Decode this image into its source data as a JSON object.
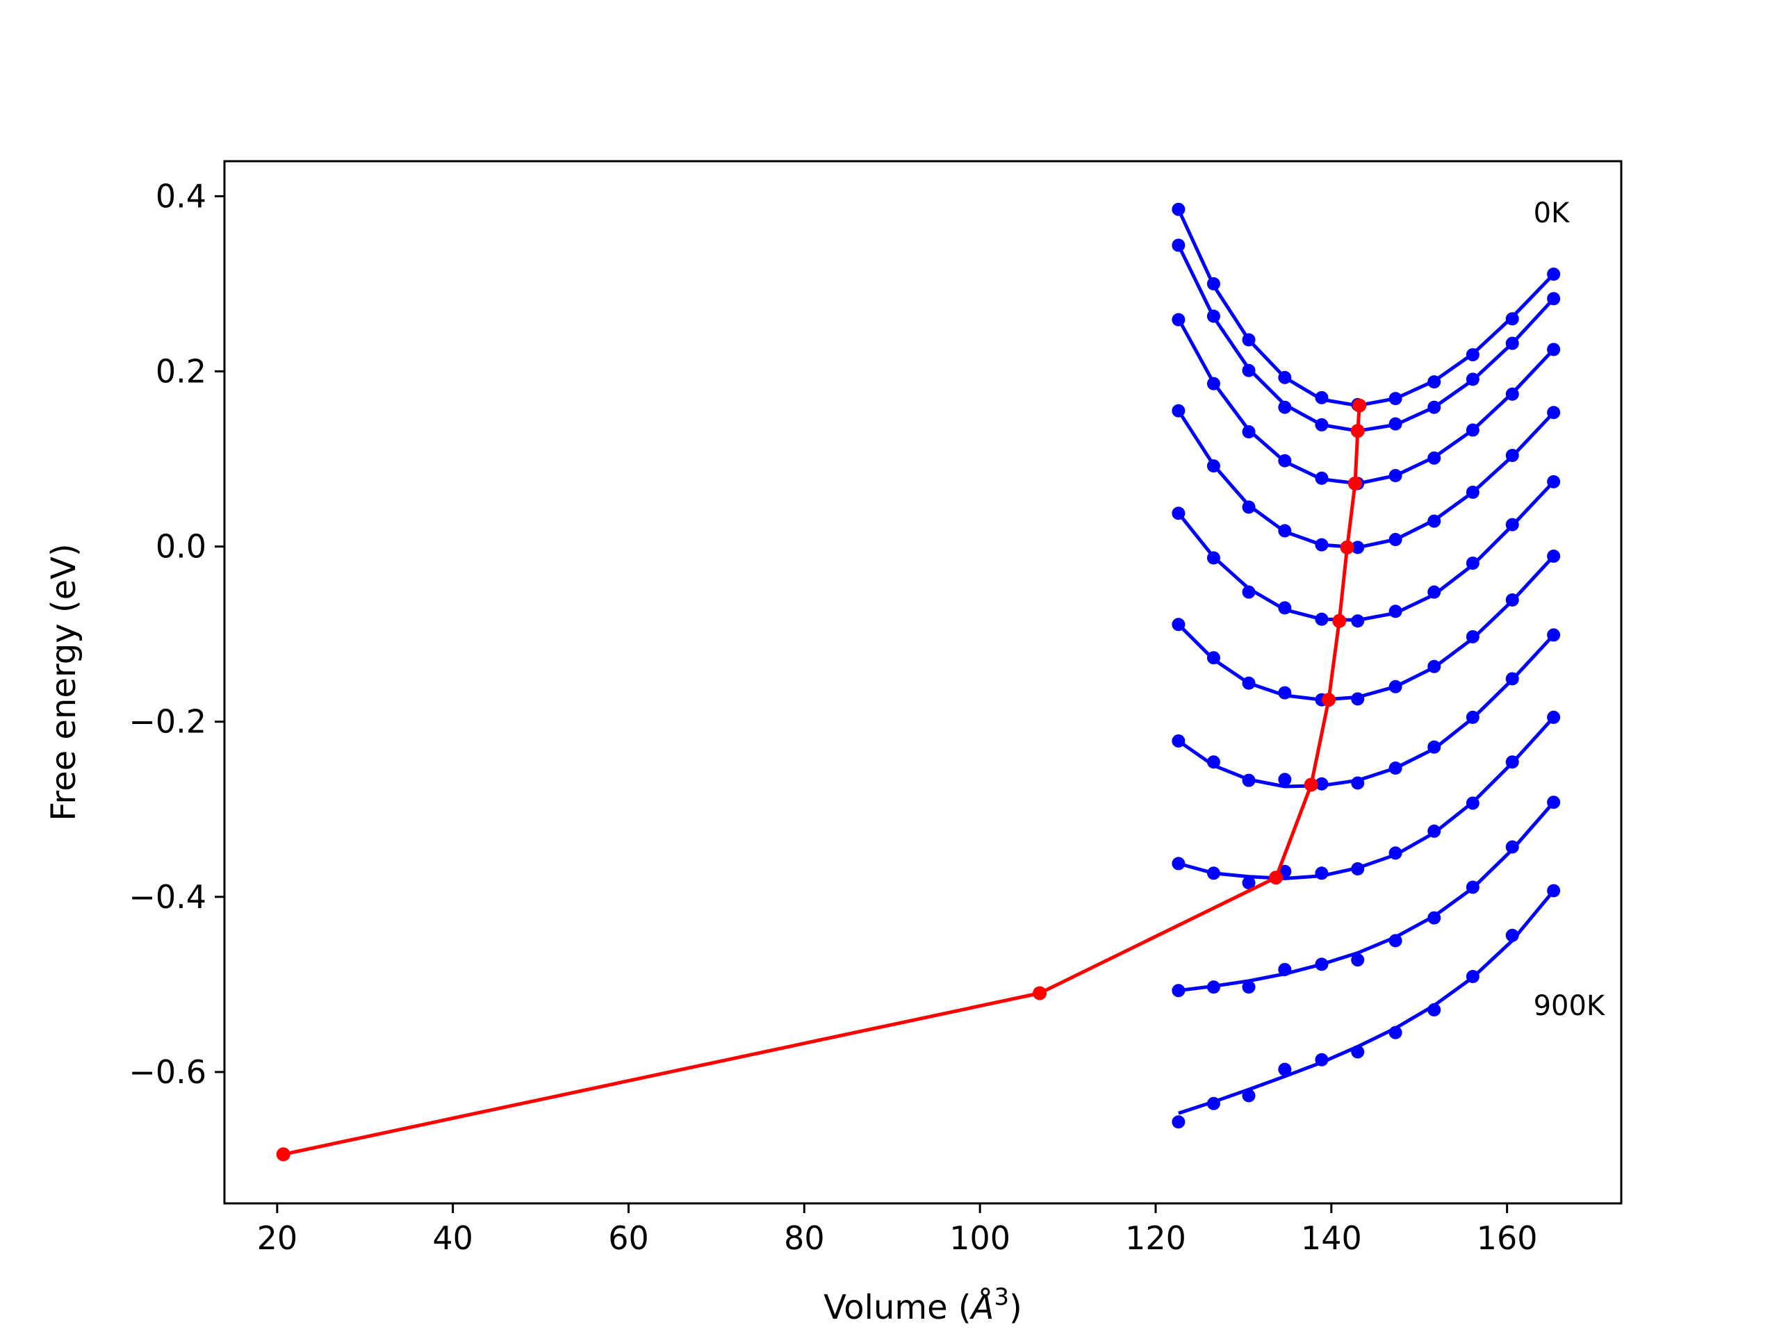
{
  "chart_data": {
    "type": "scatter",
    "title": "",
    "xlabel": "Volume (Å³)",
    "xlabel_parts": {
      "text": "Volume (",
      "symbol": "Å",
      "exponent": "3",
      "close": ")"
    },
    "ylabel": "Free energy (eV)",
    "xlim": [
      14,
      173
    ],
    "ylim": [
      -0.75,
      0.44
    ],
    "xticks": [
      20,
      40,
      60,
      80,
      100,
      120,
      140,
      160
    ],
    "xtick_labels": [
      "20",
      "40",
      "60",
      "80",
      "100",
      "120",
      "140",
      "160"
    ],
    "yticks": [
      -0.6,
      -0.4,
      -0.2,
      0.0,
      0.2,
      0.4
    ],
    "ytick_labels": [
      "−0.6",
      "−0.4",
      "−0.2",
      "0.0",
      "0.2",
      "0.4"
    ],
    "grid": false,
    "legend": "none",
    "annotations": [
      {
        "text": "0K",
        "x": 163,
        "y": 0.37
      },
      {
        "text": "900K",
        "x": 163,
        "y": -0.535
      }
    ],
    "colors": {
      "isotherm": "#0000ff",
      "minimum_path": "#ff0000",
      "axes": "#000000"
    },
    "volumes": [
      122.6,
      126.6,
      130.6,
      134.7,
      138.9,
      143.0,
      147.3,
      151.7,
      156.1,
      160.6,
      165.3
    ],
    "isotherms": [
      {
        "points": [
          0.385,
          0.3,
          0.236,
          0.193,
          0.17,
          0.162,
          0.169,
          0.188,
          0.219,
          0.26,
          0.311
        ],
        "fit": [
          0.385,
          0.298,
          0.236,
          0.193,
          0.168,
          0.161,
          0.169,
          0.189,
          0.22,
          0.262,
          0.311
        ]
      },
      {
        "points": [
          0.344,
          0.263,
          0.201,
          0.159,
          0.139,
          0.132,
          0.14,
          0.159,
          0.191,
          0.232,
          0.283
        ],
        "fit": [
          0.344,
          0.262,
          0.203,
          0.162,
          0.139,
          0.132,
          0.139,
          0.159,
          0.19,
          0.232,
          0.283
        ]
      },
      {
        "points": [
          0.259,
          0.186,
          0.131,
          0.098,
          0.078,
          0.072,
          0.081,
          0.101,
          0.133,
          0.174,
          0.225
        ],
        "fit": [
          0.26,
          0.187,
          0.133,
          0.097,
          0.077,
          0.072,
          0.081,
          0.102,
          0.133,
          0.175,
          0.225
        ]
      },
      {
        "points": [
          0.155,
          0.092,
          0.045,
          0.018,
          0.002,
          -0.001,
          0.008,
          0.029,
          0.062,
          0.104,
          0.153
        ],
        "fit": [
          0.155,
          0.093,
          0.047,
          0.017,
          0.002,
          -0.001,
          0.008,
          0.03,
          0.062,
          0.103,
          0.153
        ]
      },
      {
        "points": [
          0.038,
          -0.013,
          -0.052,
          -0.07,
          -0.083,
          -0.085,
          -0.074,
          -0.052,
          -0.019,
          0.025,
          0.074
        ],
        "fit": [
          0.038,
          -0.012,
          -0.048,
          -0.072,
          -0.083,
          -0.084,
          -0.076,
          -0.055,
          -0.021,
          0.024,
          0.074
        ]
      },
      {
        "points": [
          -0.089,
          -0.127,
          -0.156,
          -0.167,
          -0.175,
          -0.174,
          -0.16,
          -0.137,
          -0.103,
          -0.061,
          -0.011
        ],
        "fit": [
          -0.089,
          -0.129,
          -0.156,
          -0.17,
          -0.175,
          -0.172,
          -0.16,
          -0.138,
          -0.105,
          -0.062,
          -0.011
        ]
      },
      {
        "points": [
          -0.222,
          -0.246,
          -0.267,
          -0.266,
          -0.271,
          -0.27,
          -0.253,
          -0.229,
          -0.195,
          -0.151,
          -0.101
        ],
        "fit": [
          -0.222,
          -0.25,
          -0.266,
          -0.274,
          -0.273,
          -0.267,
          -0.253,
          -0.231,
          -0.196,
          -0.152,
          -0.101
        ]
      },
      {
        "points": [
          -0.362,
          -0.373,
          -0.384,
          -0.371,
          -0.373,
          -0.368,
          -0.35,
          -0.325,
          -0.293,
          -0.246,
          -0.195
        ],
        "fit": [
          -0.362,
          -0.373,
          -0.377,
          -0.379,
          -0.376,
          -0.367,
          -0.352,
          -0.327,
          -0.292,
          -0.247,
          -0.195
        ]
      },
      {
        "points": [
          -0.507,
          -0.503,
          -0.503,
          -0.483,
          -0.477,
          -0.472,
          -0.45,
          -0.424,
          -0.389,
          -0.343,
          -0.292
        ],
        "fit": [
          -0.507,
          -0.502,
          -0.496,
          -0.488,
          -0.477,
          -0.464,
          -0.446,
          -0.422,
          -0.39,
          -0.346,
          -0.292
        ]
      },
      {
        "points": [
          -0.657,
          -0.636,
          -0.627,
          -0.597,
          -0.586,
          -0.577,
          -0.555,
          -0.529,
          -0.491,
          -0.444,
          -0.393
        ],
        "fit": [
          -0.647,
          -0.634,
          -0.62,
          -0.605,
          -0.589,
          -0.571,
          -0.55,
          -0.524,
          -0.492,
          -0.45,
          -0.393
        ]
      }
    ],
    "minimum_path": {
      "x": [
        20.7,
        106.8,
        133.7,
        137.7,
        139.7,
        140.9,
        141.8,
        142.7,
        143.0,
        143.2
      ],
      "y": [
        -0.694,
        -0.51,
        -0.378,
        -0.272,
        -0.175,
        -0.085,
        -0.001,
        0.072,
        0.132,
        0.161
      ]
    }
  }
}
